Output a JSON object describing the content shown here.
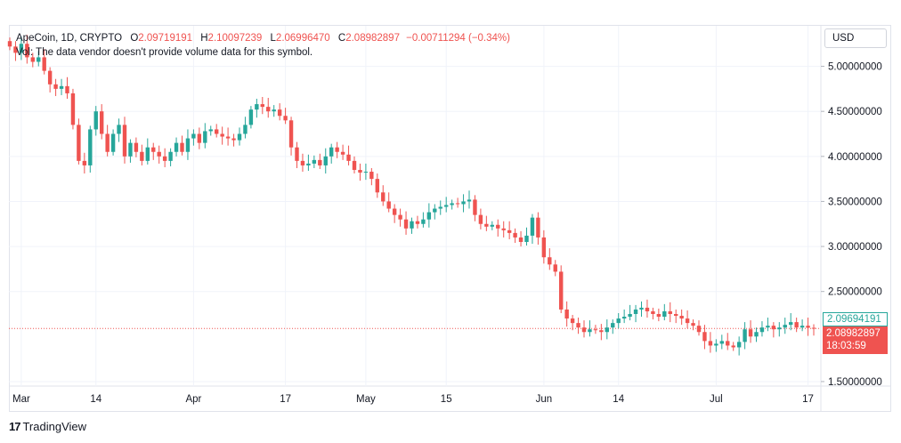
{
  "header": {
    "symbol": "ApeCoin, 1D, CRYPTO",
    "open_label": "O",
    "open": "2.09719191",
    "high_label": "H",
    "high": "2.10097239",
    "low_label": "L",
    "low": "2.06996470",
    "close_label": "C",
    "close": "2.08982897",
    "change": "−0.00711294 (−0.34%)",
    "volume_note": "Vol: The data vendor doesn't provide volume data for this symbol."
  },
  "currency_button": "USD",
  "price_tags": {
    "previous": "2.09694191",
    "last": "2.08982897",
    "countdown": "18:03:59"
  },
  "brand": {
    "logo": "17",
    "name": "TradingView"
  },
  "colors": {
    "up": "#26a69a",
    "down": "#ef5350",
    "grid": "#f0f3fa"
  },
  "chart_data": {
    "type": "candlestick",
    "title": "ApeCoin, 1D, CRYPTO",
    "ylim": [
      1.45,
      5.45
    ],
    "yticks": [
      {
        "value": 5.0,
        "label": "5.00000000"
      },
      {
        "value": 4.5,
        "label": "4.50000000"
      },
      {
        "value": 4.0,
        "label": "4.00000000"
      },
      {
        "value": 3.5,
        "label": "3.50000000"
      },
      {
        "value": 3.0,
        "label": "3.00000000"
      },
      {
        "value": 2.5,
        "label": "2.50000000"
      },
      {
        "value": 1.5,
        "label": "1.50000000"
      }
    ],
    "xticks": [
      {
        "day": 2,
        "label": "Mar"
      },
      {
        "day": 15,
        "label": "14"
      },
      {
        "day": 32,
        "label": "Apr"
      },
      {
        "day": 48,
        "label": "17"
      },
      {
        "day": 62,
        "label": "May"
      },
      {
        "day": 76,
        "label": "15"
      },
      {
        "day": 93,
        "label": "Jun"
      },
      {
        "day": 106,
        "label": "14"
      },
      {
        "day": 123,
        "label": "Jul"
      },
      {
        "day": 139,
        "label": "17"
      }
    ],
    "last_price": 2.08982897,
    "closes": [
      5.22,
      5.15,
      5.25,
      5.1,
      5.05,
      5.1,
      4.95,
      4.8,
      4.75,
      4.78,
      4.7,
      4.35,
      3.95,
      3.9,
      4.3,
      4.5,
      4.25,
      4.05,
      4.25,
      4.35,
      4.0,
      4.15,
      4.05,
      3.95,
      4.1,
      4.05,
      4.0,
      3.95,
      4.05,
      4.15,
      4.05,
      4.2,
      4.25,
      4.15,
      4.28,
      4.3,
      4.25,
      4.22,
      4.2,
      4.18,
      4.25,
      4.35,
      4.52,
      4.58,
      4.55,
      4.5,
      4.52,
      4.45,
      4.4,
      4.1,
      3.95,
      3.9,
      3.92,
      3.96,
      3.9,
      4.0,
      4.1,
      4.05,
      4.02,
      3.95,
      3.85,
      3.82,
      3.83,
      3.75,
      3.6,
      3.5,
      3.42,
      3.35,
      3.3,
      3.2,
      3.28,
      3.25,
      3.3,
      3.38,
      3.42,
      3.44,
      3.46,
      3.48,
      3.47,
      3.5,
      3.52,
      3.35,
      3.25,
      3.22,
      3.24,
      3.2,
      3.18,
      3.15,
      3.1,
      3.05,
      3.12,
      3.32,
      3.1,
      2.88,
      2.8,
      2.72,
      2.3,
      2.2,
      2.15,
      2.1,
      2.05,
      2.08,
      2.07,
      2.05,
      2.1,
      2.15,
      2.2,
      2.22,
      2.25,
      2.3,
      2.32,
      2.28,
      2.25,
      2.22,
      2.28,
      2.25,
      2.23,
      2.2,
      2.15,
      2.12,
      2.05,
      1.95,
      1.9,
      1.92,
      1.95,
      1.9,
      1.88,
      1.94,
      2.08,
      2.0,
      2.05,
      2.1,
      2.12,
      2.08,
      2.1,
      2.13,
      2.16,
      2.1,
      2.12,
      2.097,
      2.09
    ]
  }
}
